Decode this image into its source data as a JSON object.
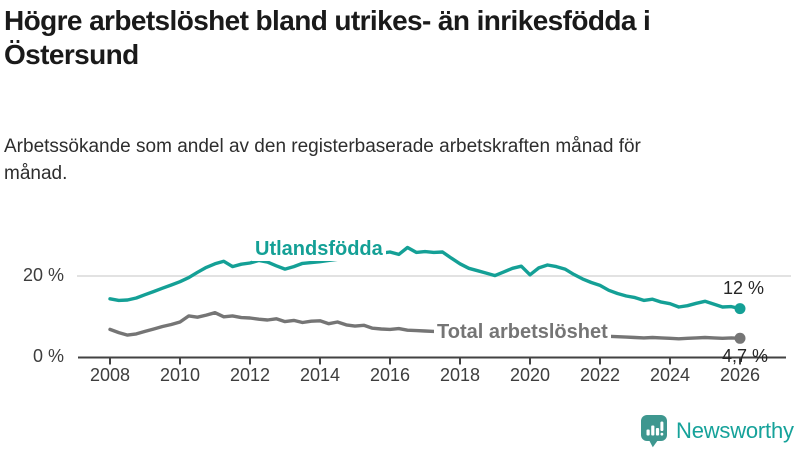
{
  "header": {
    "title": "Högre arbetslöshet bland utrikes- än inrikesfödda i Östersund",
    "subtitle": "Arbetssökande som andel av den registerbaserade arbetskraften månad för månad."
  },
  "chart_data": {
    "type": "line",
    "title": "Högre arbetslöshet bland utrikes- än inrikesfödda i Östersund",
    "subtitle": "Arbetssökande som andel av den registerbaserade arbetskraften månad för månad.",
    "x_unit": "year (decimal, quarterly estimates of monthly data)",
    "x_start": 2008.0,
    "x_step": 0.25,
    "xlim": [
      2007.1,
      2027.3
    ],
    "ylim": [
      0,
      30
    ],
    "grid": "single horizontal gridline at 20 %",
    "legend_position": "inline labels on lines",
    "yticks": [
      {
        "value": 0,
        "label": "0 %"
      },
      {
        "value": 20,
        "label": "20 %"
      }
    ],
    "xticks": [
      "2008",
      "2010",
      "2012",
      "2014",
      "2016",
      "2018",
      "2020",
      "2022",
      "2024",
      "2026"
    ],
    "series": [
      {
        "name": "Utlandsfödda",
        "color": "#14a096",
        "end_label": "12 %",
        "end_value": 12,
        "values": [
          14.4,
          14.0,
          14.1,
          14.6,
          15.4,
          16.2,
          17.0,
          17.8,
          18.6,
          19.6,
          20.9,
          22.1,
          23.0,
          23.6,
          22.3,
          22.9,
          23.2,
          23.8,
          23.4,
          22.5,
          21.7,
          22.3,
          23.1,
          23.3,
          23.5,
          23.8,
          24.1,
          24.4,
          24.7,
          25.0,
          25.3,
          25.6,
          25.9,
          25.3,
          27.0,
          25.8,
          26.0,
          25.8,
          25.9,
          24.4,
          23.0,
          21.9,
          21.3,
          20.7,
          20.1,
          21.0,
          21.9,
          22.4,
          20.3,
          22.0,
          22.7,
          22.3,
          21.7,
          20.4,
          19.3,
          18.4,
          17.7,
          16.5,
          15.7,
          15.1,
          14.7,
          14.0,
          14.3,
          13.6,
          13.2,
          12.4,
          12.7,
          13.3,
          13.8,
          13.1,
          12.4,
          12.5,
          12.0
        ]
      },
      {
        "name": "Total arbetslöshet",
        "color": "#757575",
        "end_label": "4,7 %",
        "end_value": 4.7,
        "values": [
          6.9,
          6.1,
          5.5,
          5.8,
          6.4,
          7.0,
          7.6,
          8.1,
          8.7,
          10.2,
          9.9,
          10.4,
          11.0,
          10.0,
          10.2,
          9.8,
          9.7,
          9.4,
          9.2,
          9.5,
          8.8,
          9.1,
          8.6,
          8.9,
          9.0,
          8.3,
          8.7,
          8.0,
          7.7,
          7.9,
          7.2,
          7.0,
          6.9,
          7.1,
          6.7,
          6.6,
          6.5,
          6.4,
          6.3,
          6.1,
          6.0,
          5.8,
          5.7,
          5.7,
          5.8,
          5.9,
          6.0,
          6.2,
          6.6,
          7.5,
          7.6,
          7.2,
          6.8,
          6.4,
          6.0,
          5.7,
          5.4,
          5.2,
          5.1,
          5.0,
          4.9,
          4.8,
          4.9,
          4.8,
          4.7,
          4.6,
          4.7,
          4.8,
          4.9,
          4.8,
          4.7,
          4.8,
          4.7
        ]
      }
    ]
  },
  "footer": {
    "brand": "Newsworthy",
    "logo_icon": "bar-chart-speech-bubble-icon"
  },
  "colors": {
    "accent_teal": "#14a096",
    "series_gray": "#757575",
    "gridline": "#d8d8d8",
    "axis": "#424242",
    "logo_bubble": "#3e978f",
    "logo_text": "#16a29a"
  }
}
